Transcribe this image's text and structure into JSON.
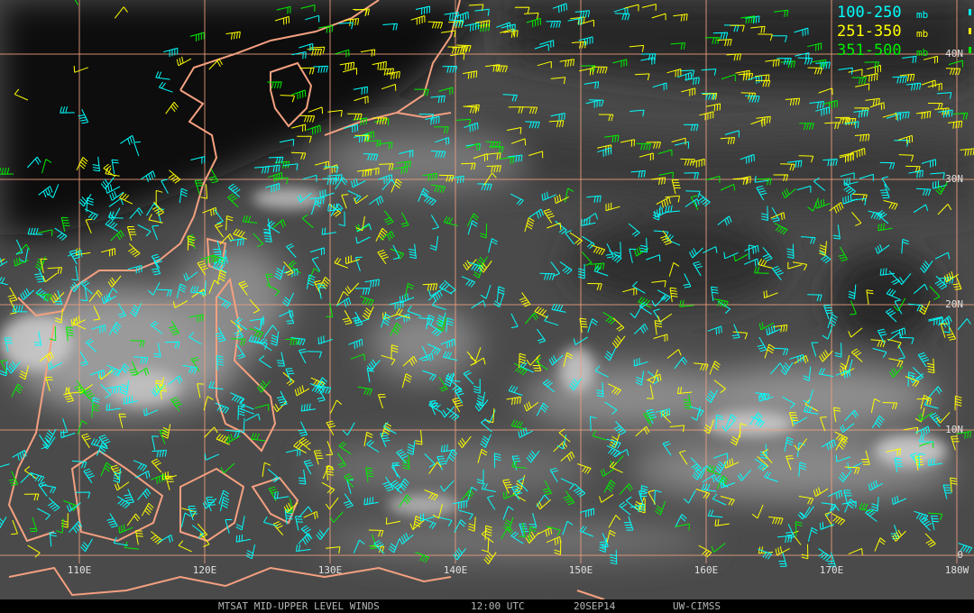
{
  "legend": [
    {
      "label": "100-250",
      "unit": "mb",
      "color": "#00ffff"
    },
    {
      "label": "251-350",
      "unit": "mb",
      "color": "#ffff00"
    },
    {
      "label": "351-500",
      "unit": "mb",
      "color": "#00ee00"
    }
  ],
  "longitude_labels": [
    "110E",
    "120E",
    "130E",
    "140E",
    "150E",
    "160E",
    "170E",
    "180W"
  ],
  "latitude_labels": [
    "40N",
    "30N",
    "20N",
    "10N",
    "0"
  ],
  "footer": {
    "title": "MTSAT MID-UPPER LEVEL WINDS",
    "time": "12:00 UTC",
    "date": "20SEP14",
    "source": "UW-CIMSS"
  }
}
